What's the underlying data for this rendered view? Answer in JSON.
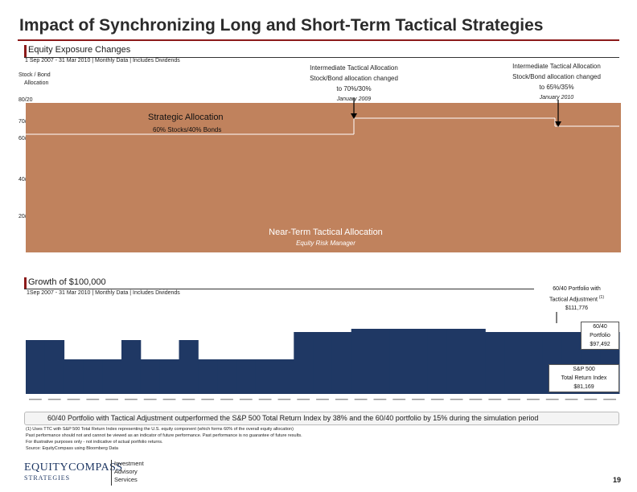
{
  "page": {
    "title": "Impact of Synchronizing Long and Short-Term Tactical Strategies",
    "page_number": "19"
  },
  "top_section": {
    "title": "Equity Exposure Changes",
    "subtitle": "1 Sep 2007 - 31 Mar 2010 | Monthly Data | Includes Dividends",
    "y_axis_title_line1": "Stock / Bond",
    "y_axis_title_line2": "Allocation",
    "y_labels": [
      "80/20",
      "70/30",
      "60/40",
      "40/60",
      "20/80"
    ],
    "strategic_label": "Strategic Allocation",
    "strategic_sub": "60% Stocks/40% Bonds",
    "near_term_label": "Near-Term Tactical Allocation",
    "near_term_sub": "Equity Risk Manager",
    "annotation_1": {
      "line1": "Intermediate Tactical Allocation",
      "line2": "Stock/Bond allocation changed",
      "line3": "to 70%/30%",
      "date": "January 2009"
    },
    "annotation_2": {
      "line1": "Intermediate Tactical Allocation",
      "line2": "Stock/Bond allocation changed",
      "line3": "to 65%/35%",
      "date": "January 2010"
    }
  },
  "bottom_section": {
    "title": "Growth of $100,000",
    "subtitle": "1Sep 2007 - 31 Mar 2010 | Monthly Data | Includes Dividends",
    "callout_tactical": {
      "line1": "60/40 Portfolio with",
      "line2": "Tactical Adjustment",
      "sup": "(1)",
      "value": "$111,776"
    },
    "callout_6040": {
      "line1": "60/40",
      "line2": "Portfolio",
      "value": "$97,492"
    },
    "callout_sp500": {
      "line1": "S&P 500",
      "line2": "Total Return Index",
      "value": "$81,169"
    }
  },
  "chart_data": [
    {
      "type": "area",
      "name": "Equity Exposure Changes",
      "y_categories": [
        "20/80",
        "40/60",
        "60/40",
        "70/30",
        "80/20"
      ],
      "strategic_allocation": "60/40",
      "intermediate_tactical_steps": [
        {
          "date": "January 2009",
          "allocation": "70/30"
        },
        {
          "date": "January 2010",
          "allocation": "65/35"
        }
      ],
      "near_term_tactical_allocation_monthly_equity_pct": [
        60,
        60,
        60,
        60,
        60,
        60,
        60,
        60,
        60,
        60,
        60,
        60,
        60,
        60,
        60,
        60,
        70,
        70,
        70,
        70,
        70,
        70,
        70,
        70,
        70,
        70,
        70,
        70,
        65,
        65,
        65
      ]
    },
    {
      "type": "bar",
      "name": "Near-Term Tactical Allocation exposure",
      "values": [
        1,
        1,
        0,
        0,
        0,
        1,
        0,
        0,
        1,
        0,
        0,
        0,
        0,
        0,
        1,
        1,
        1,
        1,
        1,
        1,
        1,
        1,
        1,
        1,
        1,
        1,
        1,
        1,
        1,
        1,
        1
      ],
      "ylim": [
        0,
        1
      ]
    },
    {
      "type": "line",
      "name": "Growth of $100,000",
      "end_values": {
        "60/40 Portfolio with Tactical Adjustment": 111776,
        "60/40 Portfolio": 97492,
        "S&P 500 Total Return Index": 81169
      }
    }
  ],
  "footnotes": {
    "line1": "(1) Uses TTC with S&P 500 Total Return Index representing the U.S. equity component (which forms 60% of the overall equity allocation)",
    "line2": "Past performance should not and cannot be viewed as an indicator of future performance. Past performance is no guarantee of future results.",
    "line3": "For illustrative purposes only - not indicative of actual portfolio returns.",
    "line4": "Source: EquityCompass using Bloomberg Data"
  },
  "bottom_message": "60/40 Portfolio with Tactical Adjustment outperformed the S&P 500 Total Return Index by 38% and the 60/40 portfolio by 15% during the simulation period",
  "logo": {
    "main": "EQUITYCOMPASS",
    "sub": "STRATEGIES"
  },
  "services": {
    "line1": "Investment",
    "line2": "Advisory",
    "line3": "Services"
  },
  "colors": {
    "brown_area": "#c0825d",
    "navy_bars": "#1f3864",
    "accent_red": "#8b1a1a"
  }
}
